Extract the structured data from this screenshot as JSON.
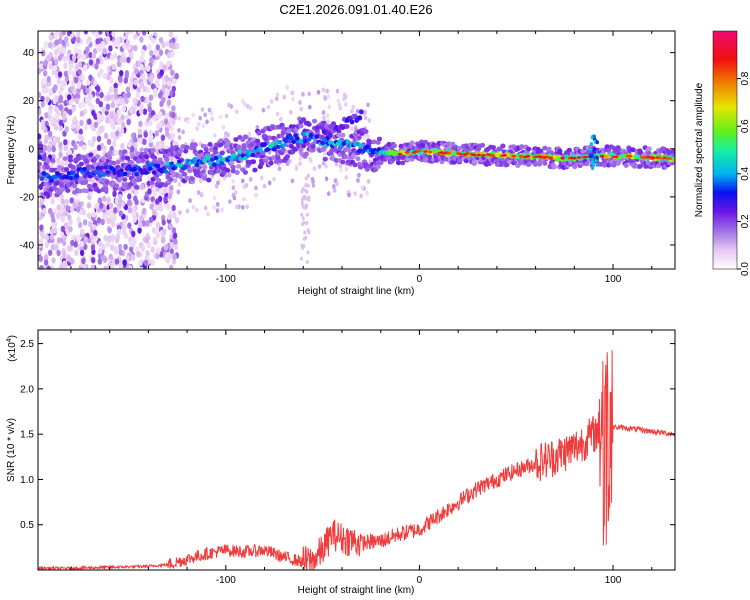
{
  "title": "C2E1.2026.091.01.40.E26",
  "chart_data": [
    {
      "type": "heatmap",
      "title": "C2E1.2026.091.01.40.E26",
      "xlabel": "Height of straight line (km)",
      "ylabel": "Frequency (Hz)",
      "xlim": [
        -197,
        132
      ],
      "ylim": [
        -50,
        49
      ],
      "x_ticks": [
        -100,
        0,
        100
      ],
      "y_ticks": [
        -40,
        -20,
        0,
        20,
        40
      ],
      "x_tick_labels": [
        "-100",
        "0",
        "100"
      ],
      "y_tick_labels": [
        "-40",
        "-20",
        "0",
        "20",
        "40"
      ],
      "colorbar": {
        "label": "Normalized spectral amplitude",
        "range": [
          0,
          1
        ],
        "ticks": [
          0,
          0.2,
          0.4,
          0.6,
          0.8
        ],
        "tick_labels": [
          "0.0",
          "0.2",
          "0.4",
          "0.6",
          "0.8"
        ],
        "colormap": [
          "#ffffff",
          "#e6c8f2",
          "#a070e6",
          "#6a18e6",
          "#0a10f0",
          "#00b4f0",
          "#18f0a0",
          "#64f018",
          "#e6e600",
          "#f08000",
          "#f01010",
          "#f00a70"
        ]
      },
      "ridge": {
        "description_points_x": [
          -195,
          -175,
          -150,
          -125,
          -100,
          -85,
          -70,
          -60,
          -50,
          -40,
          -30,
          -20,
          -10,
          0,
          20,
          50,
          80,
          90,
          100,
          132
        ],
        "description_points_y": [
          -12,
          -10,
          -9,
          -7,
          -4,
          -1,
          3,
          5,
          3,
          2,
          0,
          -2,
          -2,
          -1,
          -2,
          -3,
          -4,
          -3,
          -3,
          -4
        ]
      }
    },
    {
      "type": "line",
      "title": "",
      "xlabel": "Height of straight line (km)",
      "ylabel": "SNR (10 * v/v)",
      "y_multiplier": "(x10",
      "y_multiplier_exp": "4",
      "xlim": [
        -197,
        132
      ],
      "ylim": [
        0,
        2.65
      ],
      "x_ticks": [
        -100,
        0,
        100
      ],
      "y_ticks": [
        0.5,
        1.0,
        1.5,
        2.0,
        2.5
      ],
      "x_tick_labels": [
        "-100",
        "0",
        "100"
      ],
      "y_tick_labels": [
        "0.5",
        "1.0",
        "1.5",
        "2.0",
        "2.5"
      ],
      "line_color": "#f03c3c",
      "series": [
        {
          "name": "SNR",
          "x": [
            -197,
            -180,
            -160,
            -140,
            -130,
            -120,
            -110,
            -100,
            -90,
            -80,
            -70,
            -60,
            -55,
            -50,
            -45,
            -40,
            -30,
            -20,
            -10,
            0,
            10,
            20,
            30,
            40,
            50,
            60,
            70,
            80,
            85,
            90,
            93,
            95,
            96,
            97,
            100,
            110,
            120,
            132
          ],
          "y": [
            0.02,
            0.02,
            0.03,
            0.04,
            0.06,
            0.12,
            0.18,
            0.22,
            0.2,
            0.22,
            0.14,
            0.09,
            0.1,
            0.22,
            0.4,
            0.35,
            0.3,
            0.32,
            0.4,
            0.45,
            0.6,
            0.75,
            0.9,
            1.0,
            1.1,
            1.18,
            1.25,
            1.35,
            1.42,
            1.5,
            1.55,
            2.0,
            1.0,
            1.6,
            1.58,
            1.56,
            1.53,
            1.5
          ]
        }
      ]
    }
  ]
}
